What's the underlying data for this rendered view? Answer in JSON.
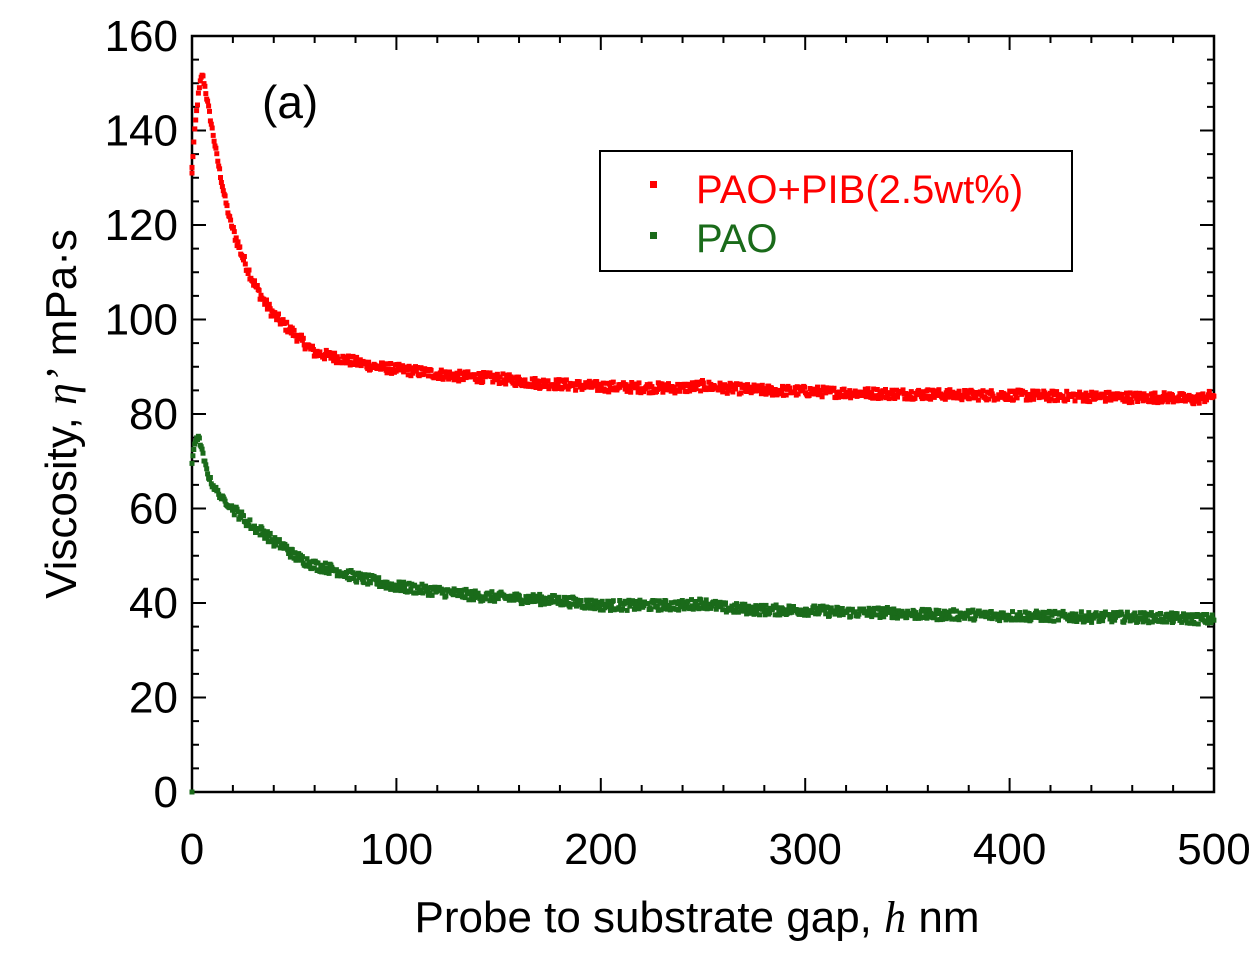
{
  "chart_data": {
    "type": "scatter",
    "panel_label": "(a)",
    "xlabel_text": "Probe to substrate gap, ",
    "xlabel_symbol": "h",
    "xlabel_unit": " nm",
    "ylabel_text": "Viscosity, ",
    "ylabel_symbol": "η’",
    "ylabel_unit": " mPa·s",
    "xlim": [
      0,
      500
    ],
    "ylim": [
      0,
      160
    ],
    "x_ticks": [
      "0",
      "100",
      "200",
      "300",
      "400",
      "500"
    ],
    "y_ticks": [
      "0",
      "20",
      "40",
      "60",
      "80",
      "100",
      "120",
      "140",
      "160"
    ],
    "grid": false,
    "legend_position": "upper-right",
    "series": [
      {
        "name": "PAO+PIB(2.5wt%)",
        "color": "#ff0000",
        "x": [
          0,
          1,
          2,
          3,
          4,
          5,
          6,
          8,
          10,
          12,
          15,
          18,
          20,
          25,
          30,
          35,
          40,
          45,
          50,
          55,
          60,
          70,
          80,
          90,
          100,
          110,
          120,
          130,
          140,
          150,
          160,
          170,
          180,
          190,
          200,
          220,
          240,
          250,
          260,
          280,
          300,
          320,
          340,
          360,
          380,
          400,
          420,
          440,
          460,
          480,
          490,
          500
        ],
        "y": [
          132,
          138,
          143,
          147,
          150,
          152,
          150,
          145,
          140,
          135,
          128,
          122,
          119,
          113,
          108,
          104,
          101,
          99,
          97,
          95,
          93,
          92,
          91,
          90,
          89.5,
          89,
          88.5,
          88,
          87.8,
          87.5,
          87,
          86.5,
          86.3,
          86,
          85.8,
          85.6,
          85.5,
          86,
          85.5,
          85,
          84.8,
          84.5,
          84.3,
          84.2,
          84,
          84,
          83.8,
          83.7,
          83.5,
          83.5,
          83,
          84
        ]
      },
      {
        "name": "PAO",
        "color": "#1a6b1a",
        "x": [
          0,
          1,
          2,
          3,
          4,
          5,
          6,
          8,
          10,
          15,
          20,
          25,
          30,
          35,
          40,
          45,
          50,
          60,
          70,
          80,
          90,
          100,
          110,
          120,
          140,
          160,
          180,
          200,
          220,
          240,
          250,
          260,
          280,
          300,
          320,
          340,
          360,
          380,
          400,
          420,
          440,
          460,
          480,
          500
        ],
        "y": [
          69,
          73,
          75,
          75,
          74,
          72,
          70,
          67,
          65,
          62,
          60,
          58,
          56,
          55,
          53,
          52,
          50,
          48,
          47,
          45.5,
          44.5,
          43.5,
          43,
          42.5,
          41.5,
          41,
          40.5,
          39.5,
          39.5,
          39.5,
          40,
          39,
          38.5,
          38.5,
          38,
          38,
          37.5,
          37.5,
          37.3,
          37.2,
          37,
          37,
          36.8,
          36.5
        ]
      }
    ]
  }
}
